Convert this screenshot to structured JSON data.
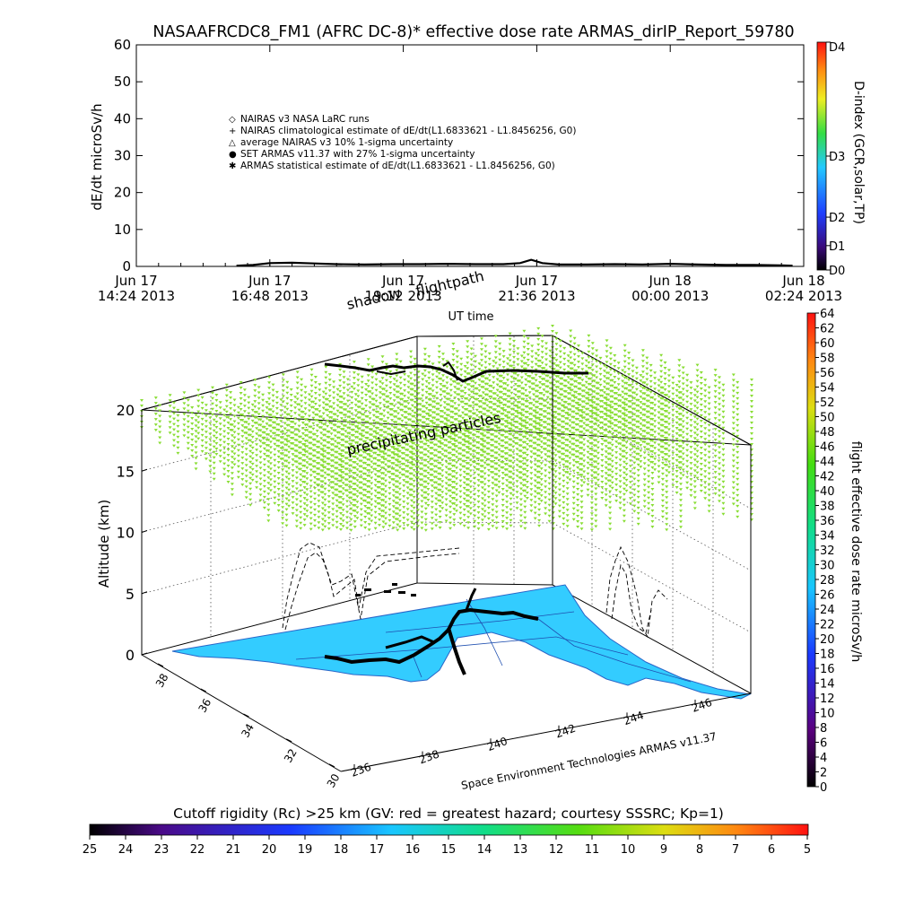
{
  "title": "NASAAFRCDC8_FM1 (AFRC DC-8)* effective dose rate ARMAS_dirIP_Report_59780",
  "colors": {
    "ocean": "#33ccff",
    "particles": "#88dd33",
    "track": "#000000",
    "contour_blue": "#3366cc"
  },
  "chart_data": [
    {
      "type": "line",
      "ylabel": "dE/dt microSv/h",
      "xlabel": "UT time",
      "ylim": [
        0,
        60
      ],
      "yticks": [
        "0",
        "10",
        "20",
        "30",
        "40",
        "50",
        "60"
      ],
      "xticks": [
        {
          "line1": "Jun 17",
          "line2": "14:24 2013"
        },
        {
          "line1": "Jun 17",
          "line2": "16:48 2013"
        },
        {
          "line1": "Jun 17",
          "line2": "19:12 2013"
        },
        {
          "line1": "Jun 17",
          "line2": "21:36 2013"
        },
        {
          "line1": "Jun 18",
          "line2": "00:00 2013"
        },
        {
          "line1": "Jun 18",
          "line2": "02:24 2013"
        }
      ],
      "legend": [
        {
          "symbol": "◇",
          "label": "NAIRAS v3 NASA LaRC runs"
        },
        {
          "symbol": "+",
          "label": "NAIRAS climatological estimate of dE/dt(L1.6833621 - L1.8456256, G0)"
        },
        {
          "symbol": "△",
          "label": "average NAIRAS v3 10% 1-sigma uncertainty"
        },
        {
          "symbol": "●",
          "label": "SET ARMAS v11.37 with 27% 1-sigma uncertainty"
        },
        {
          "symbol": "✱",
          "label": "ARMAS statistical estimate of dE/dt(L1.6833621 - L1.8456256, G0)"
        }
      ],
      "series": [
        {
          "x_hours": [
            16.2,
            16.5,
            16.8,
            17.2,
            17.6,
            18.0,
            18.5,
            19.0,
            19.5,
            20.0,
            20.5,
            21.0,
            21.3,
            21.5,
            21.7,
            22.0,
            22.5,
            23.0,
            23.5,
            24.0,
            24.5,
            25.0,
            25.5,
            26.0,
            26.2
          ],
          "values": [
            0.2,
            0.4,
            0.9,
            1.0,
            0.8,
            0.6,
            0.5,
            0.6,
            0.6,
            0.7,
            0.6,
            0.6,
            0.9,
            1.8,
            0.9,
            0.5,
            0.5,
            0.6,
            0.5,
            0.7,
            0.5,
            0.4,
            0.4,
            0.3,
            0.2
          ]
        }
      ],
      "colorbar": {
        "label": "D-index (GCR,solar,TP)",
        "ticks": [
          {
            "label": "D0",
            "v": 0
          },
          {
            "label": "D1",
            "v": 0.107
          },
          {
            "label": "D2",
            "v": 0.232
          },
          {
            "label": "D3",
            "v": 0.5
          },
          {
            "label": "D4",
            "v": 1
          }
        ]
      }
    },
    {
      "type": "scatter",
      "zlabel": "Altitude (km)",
      "zlim": [
        0,
        20
      ],
      "zticks": [
        "0",
        "5",
        "10",
        "15",
        "20"
      ],
      "lat_ticks": [
        "30",
        "32",
        "34",
        "36",
        "38"
      ],
      "lon_ticks": [
        "236",
        "238",
        "240",
        "242",
        "244",
        "246"
      ],
      "annotations": {
        "shadow": "shadow",
        "flightpath": "flightpath",
        "particles": "precipitating particles",
        "credit": "Space Environment Technologies ARMAS v11.37"
      },
      "colorbar": {
        "label": "flight effective dose rate microSv/h",
        "ticks": [
          "0",
          "2",
          "4",
          "6",
          "8",
          "10",
          "12",
          "14",
          "16",
          "18",
          "20",
          "22",
          "24",
          "26",
          "28",
          "30",
          "32",
          "34",
          "36",
          "38",
          "40",
          "42",
          "44",
          "46",
          "48",
          "50",
          "52",
          "54",
          "56",
          "58",
          "60",
          "62",
          "64"
        ]
      }
    },
    {
      "type": "heatmap",
      "title": "Cutoff rigidity (Rc) >25 km (GV: red = greatest hazard; courtesy SSSRC; Kp=1)",
      "ticks": [
        "25",
        "24",
        "23",
        "22",
        "21",
        "20",
        "19",
        "18",
        "17",
        "16",
        "15",
        "14",
        "13",
        "12",
        "11",
        "10",
        "9",
        "8",
        "7",
        "6",
        "5"
      ]
    }
  ]
}
